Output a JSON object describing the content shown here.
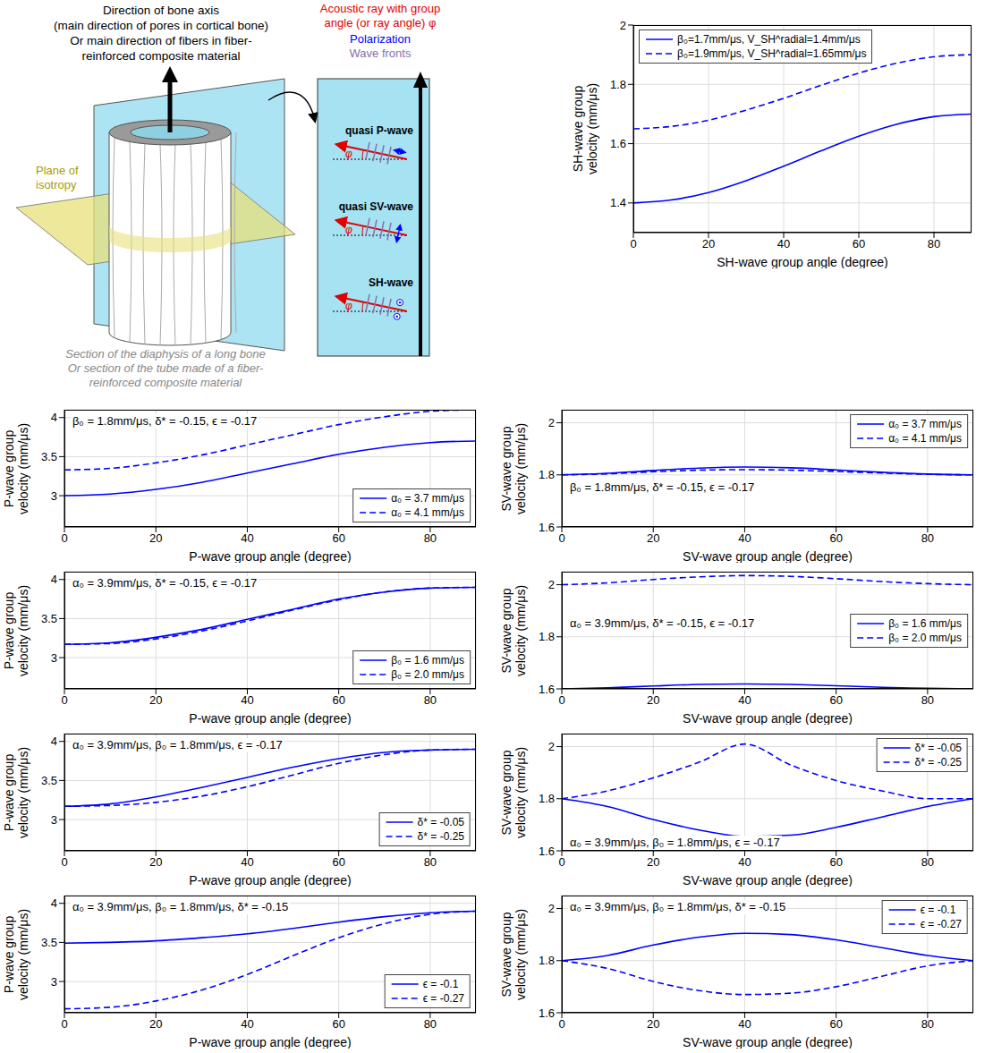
{
  "diagram": {
    "axis_text": [
      "Direction of bone axis",
      "(main direction of pores in cortical bone)",
      "Or main direction of fibers in fiber-",
      "reinforced composite material"
    ],
    "ray_text": [
      "Acoustic ray with group",
      "angle (or ray angle) φ"
    ],
    "polarization": "Polarization",
    "wave_fronts": "Wave fronts",
    "plane": "Plane of isotropy",
    "section_text": [
      "Section of the diaphysis of a long bone",
      "Or section of the tube made of a fiber-",
      "reinforced composite material"
    ],
    "waves": [
      "quasi P-wave",
      "quasi SV-wave",
      "SH-wave"
    ],
    "angle_symbol": "φ"
  },
  "chart_data": [
    {
      "type": "line",
      "x_label": "SH-wave group angle (degree)",
      "y_label": "SH-wave group velocity (mm/μs)",
      "x": [
        0,
        10,
        20,
        30,
        40,
        50,
        60,
        70,
        80,
        90
      ],
      "xlim": [
        0,
        90
      ],
      "xticks": [
        0,
        20,
        40,
        60,
        80
      ],
      "ylim": [
        1.3,
        2.0
      ],
      "yticks": [
        1.4,
        1.6,
        1.8,
        2
      ],
      "grid": true,
      "legend": "upper left",
      "series": [
        {
          "name": "β₀=1.7mm/μs, V_SH^radial=1.4mm/μs",
          "color": "#0000ff",
          "line_style": "solid",
          "values": [
            1.4,
            1.41,
            1.435,
            1.475,
            1.524,
            1.576,
            1.625,
            1.665,
            1.691,
            1.7
          ]
        },
        {
          "name": "β₀=1.9mm/μs, V_SH^radial=1.65mm/μs",
          "color": "#0000ff",
          "line_style": "dashed",
          "values": [
            1.65,
            1.658,
            1.679,
            1.713,
            1.753,
            1.797,
            1.838,
            1.871,
            1.893,
            1.9
          ]
        }
      ]
    },
    {
      "type": "line",
      "x_label": "P-wave group angle (degree)",
      "y_label": "P-wave group velocity (mm/μs)",
      "annotation": "β₀ = 1.8mm/μs, δ* = -0.15, ϵ = -0.17",
      "x": [
        0,
        10,
        20,
        30,
        40,
        50,
        60,
        70,
        80,
        90
      ],
      "xlim": [
        0,
        90
      ],
      "xticks": [
        0,
        20,
        40,
        60,
        80
      ],
      "ylim": [
        2.6,
        4.1
      ],
      "yticks": [
        3,
        3.5,
        4
      ],
      "grid": true,
      "legend": "lower right",
      "series": [
        {
          "name": "α₀ = 3.7 mm/μs",
          "color": "#0000ff",
          "line_style": "solid",
          "values": [
            3.0,
            3.02,
            3.08,
            3.17,
            3.29,
            3.41,
            3.53,
            3.62,
            3.68,
            3.7
          ]
        },
        {
          "name": "α₀ = 4.1 mm/μs",
          "color": "#0000ff",
          "line_style": "dashed",
          "values": [
            3.33,
            3.35,
            3.42,
            3.52,
            3.65,
            3.78,
            3.91,
            4.01,
            4.08,
            4.1
          ]
        }
      ]
    },
    {
      "type": "line",
      "x_label": "SV-wave group angle (degree)",
      "y_label": "SV-wave group velocity (mm/μs)",
      "annotation": "β₀ = 1.8mm/μs, δ* = -0.15, ϵ = -0.17",
      "x": [
        0,
        10,
        20,
        30,
        40,
        50,
        60,
        70,
        80,
        90
      ],
      "xlim": [
        0,
        90
      ],
      "xticks": [
        0,
        20,
        40,
        60,
        80
      ],
      "ylim": [
        1.6,
        2.05
      ],
      "yticks": [
        1.6,
        1.8,
        2
      ],
      "grid": true,
      "legend": "upper right",
      "series": [
        {
          "name": "α₀ = 3.7 mm/μs",
          "color": "#0000ff",
          "line_style": "solid",
          "values": [
            1.8,
            1.806,
            1.817,
            1.826,
            1.83,
            1.827,
            1.819,
            1.81,
            1.803,
            1.8
          ]
        },
        {
          "name": "α₀ = 4.1 mm/μs",
          "color": "#0000ff",
          "line_style": "dashed",
          "values": [
            1.8,
            1.804,
            1.812,
            1.818,
            1.82,
            1.818,
            1.813,
            1.807,
            1.802,
            1.8
          ]
        }
      ]
    },
    {
      "type": "line",
      "x_label": "P-wave group angle (degree)",
      "y_label": "P-wave group velocity (mm/μs)",
      "annotation": "α₀ = 3.9mm/μs, δ* = -0.15, ϵ = -0.17",
      "x": [
        0,
        10,
        20,
        30,
        40,
        50,
        60,
        70,
        80,
        90
      ],
      "xlim": [
        0,
        90
      ],
      "xticks": [
        0,
        20,
        40,
        60,
        80
      ],
      "ylim": [
        2.6,
        4.1
      ],
      "yticks": [
        3,
        3.5,
        4
      ],
      "grid": true,
      "legend": "lower right",
      "series": [
        {
          "name": "β₀ = 1.6 mm/μs",
          "color": "#0000ff",
          "line_style": "solid",
          "values": [
            3.17,
            3.19,
            3.26,
            3.36,
            3.49,
            3.62,
            3.75,
            3.84,
            3.89,
            3.9
          ]
        },
        {
          "name": "β₀ = 2.0 mm/μs",
          "color": "#0000ff",
          "line_style": "dashed",
          "values": [
            3.17,
            3.18,
            3.24,
            3.34,
            3.47,
            3.61,
            3.74,
            3.84,
            3.89,
            3.9
          ]
        }
      ]
    },
    {
      "type": "line",
      "x_label": "SV-wave group angle (degree)",
      "y_label": "SV-wave group velocity (mm/μs)",
      "annotation": "α₀ = 3.9mm/μs, δ* = -0.15, ϵ = -0.17",
      "x": [
        0,
        10,
        20,
        30,
        40,
        50,
        60,
        70,
        80,
        90
      ],
      "xlim": [
        0,
        90
      ],
      "xticks": [
        0,
        20,
        40,
        60,
        80
      ],
      "ylim": [
        1.6,
        2.05
      ],
      "yticks": [
        1.6,
        1.8,
        2
      ],
      "grid": true,
      "legend": "center right",
      "series": [
        {
          "name": "β₀ = 1.6 mm/μs",
          "color": "#0000ff",
          "line_style": "solid",
          "values": [
            1.6,
            1.604,
            1.611,
            1.617,
            1.619,
            1.617,
            1.612,
            1.606,
            1.602,
            1.6
          ]
        },
        {
          "name": "β₀ = 2.0 mm/μs",
          "color": "#0000ff",
          "line_style": "dashed",
          "values": [
            2.0,
            2.007,
            2.02,
            2.03,
            2.035,
            2.032,
            2.023,
            2.012,
            2.004,
            2.0
          ]
        }
      ]
    },
    {
      "type": "line",
      "x_label": "P-wave group angle (degree)",
      "y_label": "P-wave group velocity (mm/μs)",
      "annotation": "α₀ = 3.9mm/μs, β₀ = 1.8mm/μs, ϵ = -0.17",
      "x": [
        0,
        10,
        20,
        30,
        40,
        50,
        60,
        70,
        80,
        90
      ],
      "xlim": [
        0,
        90
      ],
      "xticks": [
        0,
        20,
        40,
        60,
        80
      ],
      "ylim": [
        2.6,
        4.1
      ],
      "yticks": [
        3,
        3.5,
        4
      ],
      "grid": true,
      "legend": "lower right",
      "series": [
        {
          "name": "δ* = -0.05",
          "color": "#0000ff",
          "line_style": "solid",
          "values": [
            3.17,
            3.2,
            3.29,
            3.41,
            3.54,
            3.67,
            3.78,
            3.86,
            3.89,
            3.9
          ]
        },
        {
          "name": "δ* = -0.25",
          "color": "#0000ff",
          "line_style": "dashed",
          "values": [
            3.17,
            3.18,
            3.22,
            3.3,
            3.42,
            3.57,
            3.72,
            3.83,
            3.89,
            3.9
          ]
        }
      ]
    },
    {
      "type": "line",
      "x_label": "SV-wave group angle (degree)",
      "y_label": "SV-wave group velocity (mm/μs)",
      "annotation": "α₀ = 3.9mm/μs, β₀ = 1.8mm/μs, ϵ = -0.17",
      "x": [
        0,
        10,
        20,
        30,
        40,
        50,
        60,
        70,
        80,
        90
      ],
      "xlim": [
        0,
        90
      ],
      "xticks": [
        0,
        20,
        40,
        60,
        80
      ],
      "ylim": [
        1.6,
        2.05
      ],
      "yticks": [
        1.6,
        1.8,
        2
      ],
      "grid": true,
      "legend": "upper right",
      "series": [
        {
          "name": "δ* = -0.05",
          "color": "#0000ff",
          "line_style": "solid",
          "values": [
            1.8,
            1.77,
            1.72,
            1.68,
            1.655,
            1.66,
            1.69,
            1.73,
            1.77,
            1.8
          ]
        },
        {
          "name": "δ* = -0.25",
          "color": "#0000ff",
          "line_style": "dashed",
          "values": [
            1.8,
            1.83,
            1.88,
            1.94,
            2.01,
            1.93,
            1.87,
            1.83,
            1.8,
            1.8
          ]
        }
      ]
    },
    {
      "type": "line",
      "x_label": "P-wave group angle (degree)",
      "y_label": "P-wave group velocity (mm/μs)",
      "annotation": "α₀ = 3.9mm/μs, β₀ = 1.8mm/μs, δ* = -0.15",
      "x": [
        0,
        10,
        20,
        30,
        40,
        50,
        60,
        70,
        80,
        90
      ],
      "xlim": [
        0,
        90
      ],
      "xticks": [
        0,
        20,
        40,
        60,
        80
      ],
      "ylim": [
        2.6,
        4.1
      ],
      "yticks": [
        3,
        3.5,
        4
      ],
      "grid": true,
      "legend": "lower right",
      "series": [
        {
          "name": "ϵ = -0.1",
          "color": "#0000ff",
          "line_style": "solid",
          "values": [
            3.49,
            3.5,
            3.52,
            3.56,
            3.61,
            3.68,
            3.76,
            3.83,
            3.88,
            3.9
          ]
        },
        {
          "name": "ϵ = -0.27",
          "color": "#0000ff",
          "line_style": "dashed",
          "values": [
            2.65,
            2.67,
            2.75,
            2.89,
            3.09,
            3.33,
            3.56,
            3.74,
            3.86,
            3.9
          ]
        }
      ]
    },
    {
      "type": "line",
      "x_label": "SV-wave group angle (degree)",
      "y_label": "SV-wave group velocity (mm/μs)",
      "annotation": "α₀ = 3.9mm/μs, β₀ = 1.8mm/μs, δ* = -0.15",
      "x": [
        0,
        10,
        20,
        30,
        40,
        50,
        60,
        70,
        80,
        90
      ],
      "xlim": [
        0,
        90
      ],
      "xticks": [
        0,
        20,
        40,
        60,
        80
      ],
      "ylim": [
        1.6,
        2.05
      ],
      "yticks": [
        1.6,
        1.8,
        2
      ],
      "grid": true,
      "legend": "upper right",
      "series": [
        {
          "name": "ϵ = -0.1",
          "color": "#0000ff",
          "line_style": "solid",
          "values": [
            1.8,
            1.82,
            1.86,
            1.89,
            1.905,
            1.9,
            1.88,
            1.85,
            1.82,
            1.8
          ]
        },
        {
          "name": "ϵ = -0.27",
          "color": "#0000ff",
          "line_style": "dashed",
          "values": [
            1.8,
            1.77,
            1.72,
            1.685,
            1.67,
            1.675,
            1.7,
            1.74,
            1.78,
            1.8
          ]
        }
      ]
    }
  ]
}
